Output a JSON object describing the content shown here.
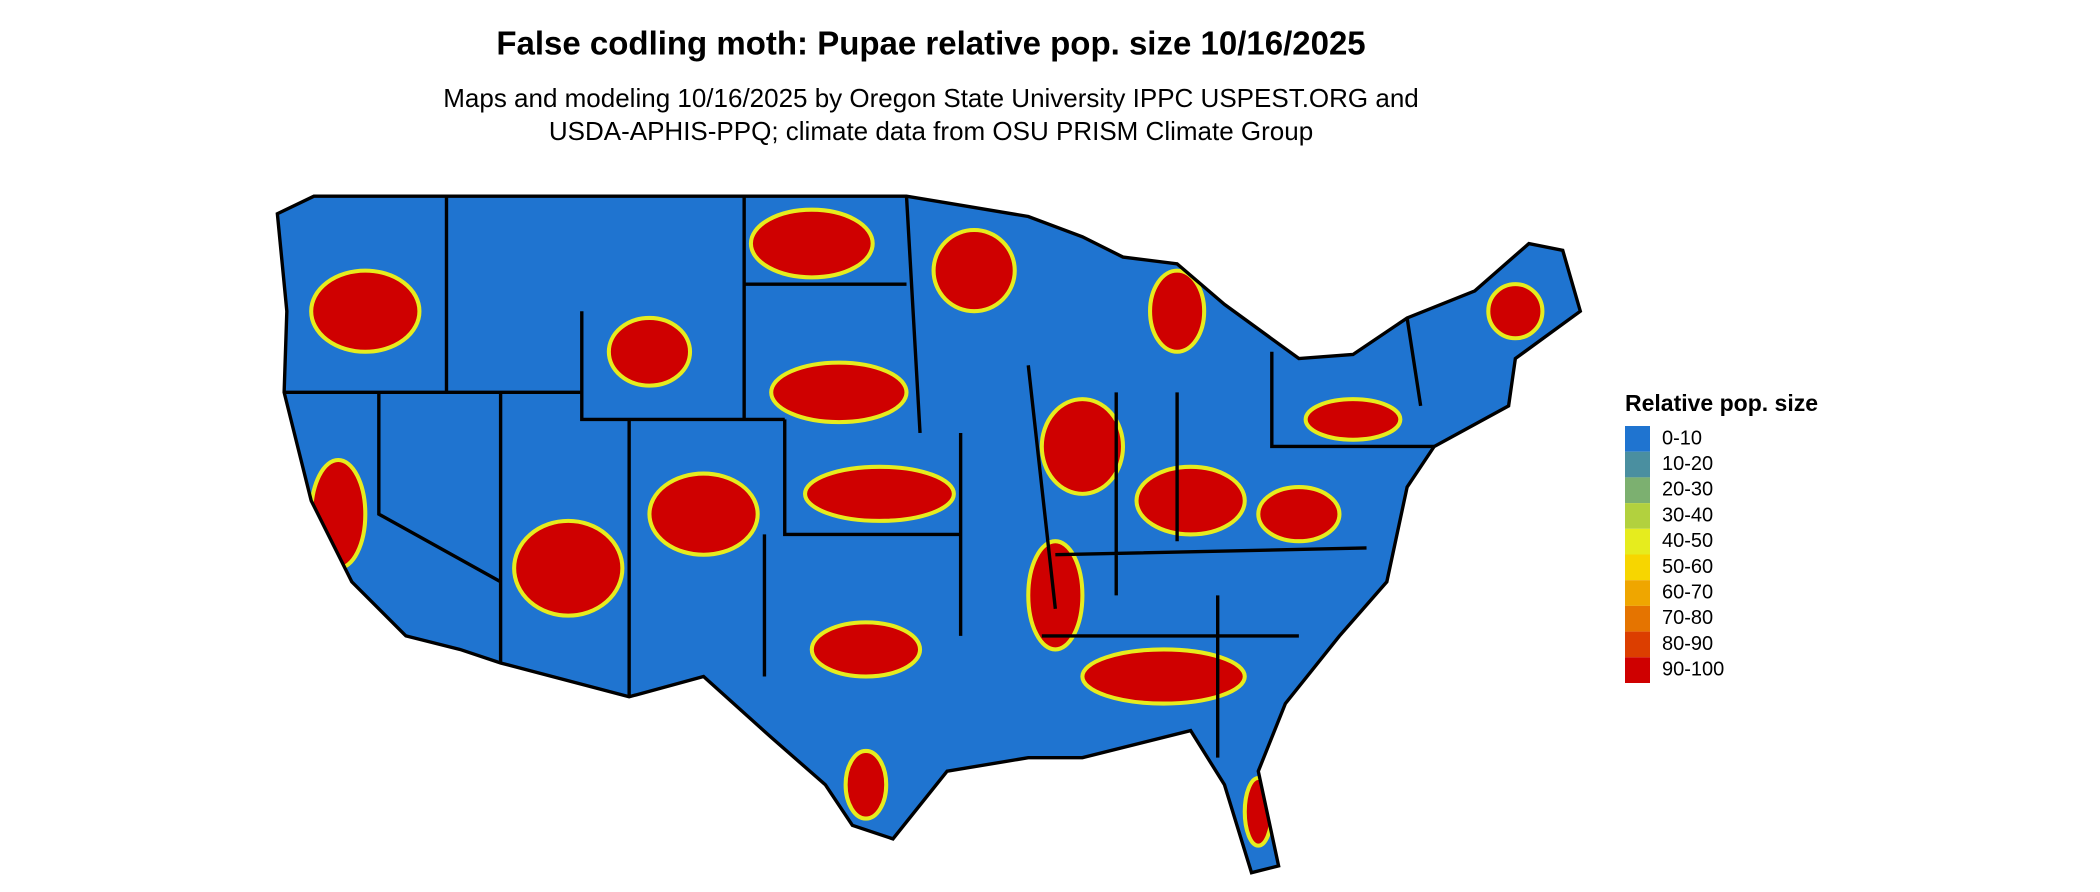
{
  "title": "False codling moth: Pupae relative pop. size 10/16/2025",
  "subtitle": [
    "Maps and modeling 10/16/2025 by Oregon State University IPPC USPEST.ORG and",
    "USDA-APHIS-PPQ; climate data from OSU PRISM Climate Group"
  ],
  "legend": {
    "title": "Relative pop. size",
    "items": [
      {
        "label": "0-10",
        "color": "#1f74d0"
      },
      {
        "label": "10-20",
        "color": "#4a8fa0"
      },
      {
        "label": "20-30",
        "color": "#7cb070"
      },
      {
        "label": "30-40",
        "color": "#b2d13e"
      },
      {
        "label": "40-50",
        "color": "#e6ec1e"
      },
      {
        "label": "50-60",
        "color": "#f7d600"
      },
      {
        "label": "60-70",
        "color": "#efa600"
      },
      {
        "label": "70-80",
        "color": "#e57400"
      },
      {
        "label": "80-90",
        "color": "#dc3e00"
      },
      {
        "label": "90-100",
        "color": "#cf0000"
      }
    ]
  }
}
